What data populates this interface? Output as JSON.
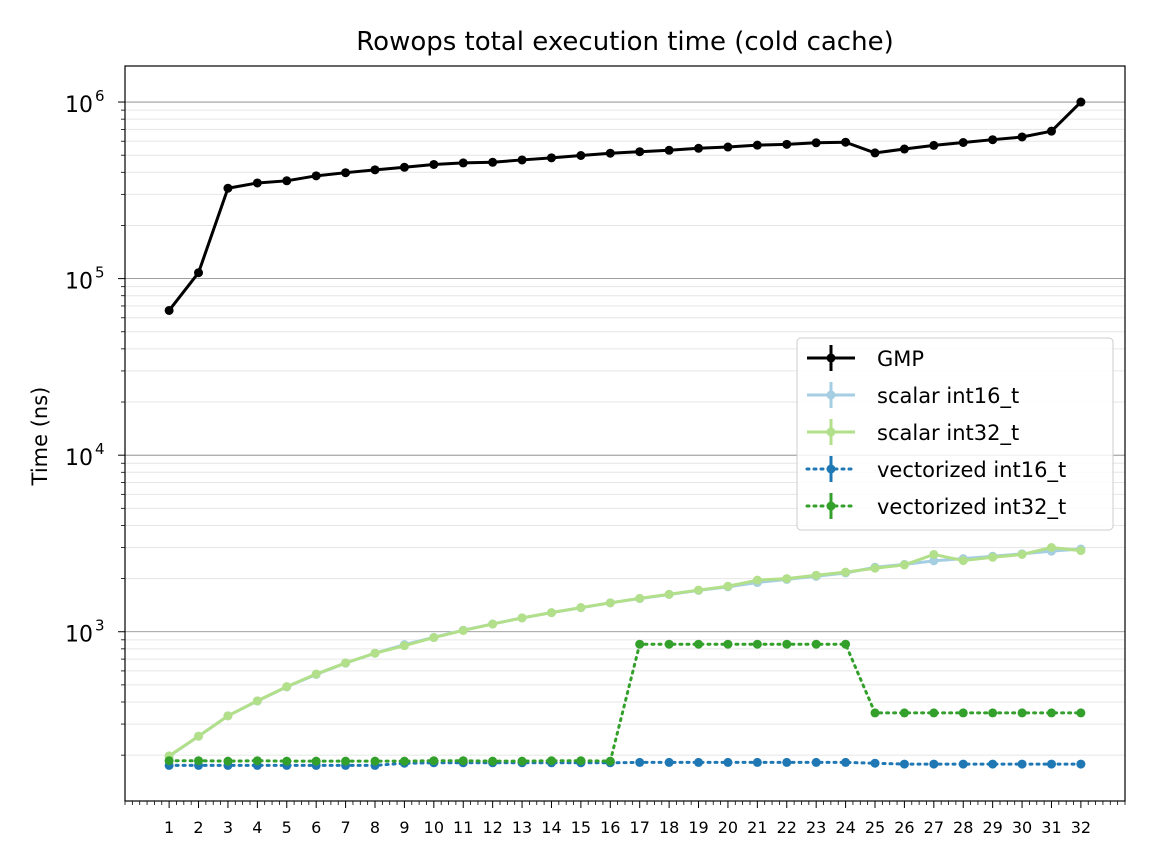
{
  "chart_data": {
    "type": "line",
    "title": "Rowops total execution time (cold cache)",
    "xlabel": "",
    "ylabel": "Time (ns)",
    "y_scale": "log",
    "ylim": [
      110,
      1600000
    ],
    "xlim": [
      -0.5,
      33.5
    ],
    "x": [
      1,
      2,
      3,
      4,
      5,
      6,
      7,
      8,
      9,
      10,
      11,
      12,
      13,
      14,
      15,
      16,
      17,
      18,
      19,
      20,
      21,
      22,
      23,
      24,
      25,
      26,
      27,
      28,
      29,
      30,
      31,
      32
    ],
    "x_tick_labels": [
      "1",
      "2",
      "3",
      "4",
      "5",
      "6",
      "7",
      "8",
      "9",
      "10",
      "11",
      "12",
      "13",
      "14",
      "15",
      "16",
      "17",
      "18",
      "19",
      "20",
      "21",
      "22",
      "23",
      "24",
      "25",
      "26",
      "27",
      "28",
      "29",
      "30",
      "31",
      "32"
    ],
    "y_tick_labels": [
      {
        "base": "10",
        "exp": "3",
        "value": 1000
      },
      {
        "base": "10",
        "exp": "4",
        "value": 10000
      },
      {
        "base": "10",
        "exp": "5",
        "value": 100000
      },
      {
        "base": "10",
        "exp": "6",
        "value": 1000000
      }
    ],
    "grid": true,
    "legend_position": "center-right",
    "series": [
      {
        "name": "GMP",
        "color": "#000000",
        "dash": "solid",
        "marker_style": "errorbar-line",
        "values": [
          66000,
          108000,
          325000,
          348000,
          358000,
          382000,
          398000,
          413000,
          427000,
          443000,
          452000,
          456000,
          470000,
          483000,
          498000,
          513000,
          523000,
          533000,
          547000,
          556000,
          570000,
          576000,
          588000,
          592000,
          515000,
          542000,
          568000,
          590000,
          612000,
          634000,
          684000,
          1000000
        ]
      },
      {
        "name": "scalar int16_t",
        "color": "#a6cee3",
        "dash": "solid",
        "marker_style": "errorbar-line",
        "values": [
          197,
          256,
          334,
          405,
          487,
          573,
          664,
          756,
          845,
          929,
          1020,
          1107,
          1197,
          1283,
          1368,
          1458,
          1541,
          1626,
          1714,
          1796,
          1900,
          1979,
          2060,
          2152,
          2320,
          2406,
          2520,
          2594,
          2678,
          2762,
          2860,
          2940
        ]
      },
      {
        "name": "scalar int32_t",
        "color": "#b2df8a",
        "dash": "solid",
        "marker_style": "errorbar-line",
        "values": [
          198,
          256,
          334,
          406,
          489,
          576,
          666,
          756,
          834,
          927,
          1017,
          1105,
          1198,
          1283,
          1371,
          1457,
          1546,
          1630,
          1722,
          1810,
          1959,
          2000,
          2090,
          2175,
          2290,
          2390,
          2740,
          2530,
          2640,
          2740,
          3000,
          2880
        ]
      },
      {
        "name": "vectorized int16_t",
        "color": "#1f78b4",
        "dash": "dotted",
        "marker_style": "errorbar-dotted",
        "values": [
          175,
          175,
          175,
          175,
          175,
          175,
          175,
          175,
          180,
          181,
          181,
          181,
          181,
          181,
          181,
          181,
          182,
          182,
          182,
          182,
          182,
          182,
          182,
          182,
          180,
          178,
          178,
          178,
          178,
          178,
          178,
          178
        ]
      },
      {
        "name": "vectorized int32_t",
        "color": "#33a02c",
        "dash": "dotted",
        "marker_style": "errorbar-dotted",
        "values": [
          186,
          186,
          185,
          186,
          185,
          185,
          185,
          185,
          185,
          186,
          186,
          185,
          185,
          186,
          186,
          185,
          850,
          850,
          850,
          850,
          850,
          850,
          850,
          850,
          347,
          347,
          347,
          347,
          347,
          347,
          347,
          347
        ]
      }
    ]
  }
}
